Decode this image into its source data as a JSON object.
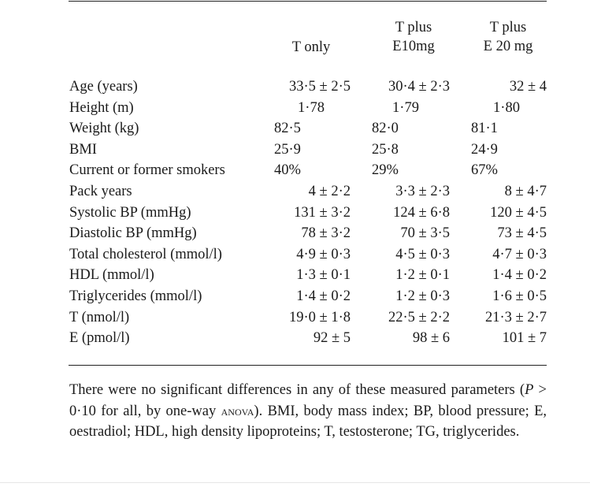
{
  "table": {
    "columns": [
      {
        "line1": "",
        "line2": "T only"
      },
      {
        "line1": "T plus",
        "line2": "E10mg"
      },
      {
        "line1": "T plus",
        "line2": "E 20 mg"
      }
    ],
    "rows": [
      {
        "label": "Age (years)",
        "values": [
          "33·5 ± 2·5",
          "30·4 ± 2·3",
          "32 ± 4"
        ],
        "align": "right"
      },
      {
        "label": "Height (m)",
        "values": [
          "1·78",
          "1·79",
          "1·80"
        ],
        "align": "center"
      },
      {
        "label": "Weight (kg)",
        "values": [
          "82·5",
          "82·0",
          "81·1"
        ],
        "align": "left"
      },
      {
        "label": "BMI",
        "values": [
          "25·9",
          "25·8",
          "24·9"
        ],
        "align": "left"
      },
      {
        "label": "Current or former smokers",
        "values": [
          "40%",
          "29%",
          "67%"
        ],
        "align": "left"
      },
      {
        "label": "Pack years",
        "values": [
          "4 ± 2·2",
          "3·3 ± 2·3",
          "8 ± 4·7"
        ],
        "align": "right"
      },
      {
        "label": "Systolic BP (mmHg)",
        "values": [
          "131 ± 3·2",
          "124 ± 6·8",
          "120 ± 4·5"
        ],
        "align": "right"
      },
      {
        "label": "Diastolic BP (mmHg)",
        "values": [
          "78 ± 3·2",
          "70 ± 3·5",
          "73 ± 4·5"
        ],
        "align": "right"
      },
      {
        "label": "Total cholesterol (mmol/l)",
        "values": [
          "4·9 ± 0·3",
          "4·5 ± 0·3",
          "4·7 ± 0·3"
        ],
        "align": "right"
      },
      {
        "label": "HDL (mmol/l)",
        "values": [
          "1·3 ± 0·1",
          "1·2 ± 0·1",
          "1·4 ± 0·2"
        ],
        "align": "right"
      },
      {
        "label": "Triglycerides (mmol/l)",
        "values": [
          "1·4 ± 0·2",
          "1·2 ± 0·3",
          "1·6 ± 0·5"
        ],
        "align": "right"
      },
      {
        "label": "T (nmol/l)",
        "values": [
          "19·0 ± 1·8",
          "22·5 ± 2·2",
          "21·3 ± 2·7"
        ],
        "align": "right"
      },
      {
        "label": "E (pmol/l)",
        "values": [
          "92 ± 5",
          "98 ± 6",
          "101 ± 7"
        ],
        "align": "right"
      }
    ]
  },
  "note": {
    "part1": "There were no significant differences in any of these measured parameters (",
    "p_symbol": "P",
    "part2": " > 0·10 for all, by one-way ",
    "anova": "anova",
    "part3": "). BMI, body mass index; BP, blood pressure; E, oestradiol; HDL, high density lipoproteins; T, testosterone; TG, triglycerides."
  }
}
